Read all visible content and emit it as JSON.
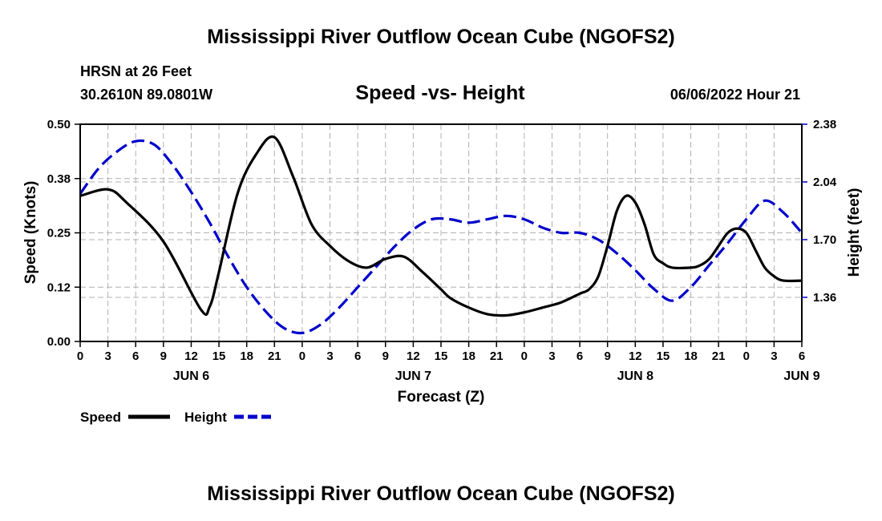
{
  "header": {
    "title": "Mississippi River Outflow Ocean Cube (NGOFS2)",
    "station": "HRSN at 26 Feet",
    "location": "30.2610N  89.0801W",
    "subtitle": "Speed -vs- Height",
    "datetime": "06/06/2022 Hour 21",
    "footer_title": "Mississippi River Outflow Ocean Cube (NGOFS2)"
  },
  "legend": {
    "speed_label": "Speed",
    "height_label": "Height"
  },
  "colors": {
    "speed": "#000000",
    "height": "#0000cc",
    "grid": "#b0b0b0"
  },
  "chart_data": {
    "type": "line",
    "title": "Speed -vs- Height",
    "xlabel": "Forecast (Z)",
    "ylabel": "Speed (Knots)",
    "y2label": "Height (feet)",
    "x_unit": "forecast hour from JUN 6 00Z",
    "xlim": [
      0,
      78
    ],
    "ylim": [
      0,
      0.5
    ],
    "y2lim": [
      1.1,
      2.38
    ],
    "x_tick_labels": [
      "0",
      "3",
      "6",
      "9",
      "12",
      "15",
      "18",
      "21",
      "0",
      "3",
      "6",
      "9",
      "12",
      "15",
      "18",
      "21",
      "0",
      "3",
      "6",
      "9",
      "12",
      "15",
      "18",
      "21",
      "0",
      "3",
      "6"
    ],
    "y_tick_labels": [
      "0.00",
      "0.12",
      "0.25",
      "0.38",
      "0.50"
    ],
    "y2_tick_labels": [
      "1.36",
      "1.70",
      "2.04",
      "2.38"
    ],
    "y2_tick_values": [
      1.36,
      1.7,
      2.04,
      2.38
    ],
    "day_labels": [
      {
        "label": "JUN 6",
        "x": 12
      },
      {
        "label": "JUN 7",
        "x": 36
      },
      {
        "label": "JUN 8",
        "x": 60
      },
      {
        "label": "JUN 9",
        "x": 78
      }
    ],
    "series": [
      {
        "name": "Speed",
        "axis": "left",
        "x": [
          0,
          3,
          5,
          9,
          13,
          14,
          15,
          17,
          19,
          21,
          23,
          25,
          27,
          29,
          31,
          33,
          35,
          37,
          39,
          40,
          42,
          44,
          46,
          48,
          50,
          52,
          54,
          55,
          56,
          57,
          58,
          59,
          60,
          61,
          62,
          63,
          64,
          66,
          67,
          68,
          69,
          70,
          71,
          72,
          73,
          74,
          75,
          76,
          78
        ],
        "values": [
          0.335,
          0.35,
          0.32,
          0.23,
          0.075,
          0.08,
          0.16,
          0.34,
          0.43,
          0.47,
          0.38,
          0.27,
          0.22,
          0.185,
          0.17,
          0.19,
          0.195,
          0.16,
          0.12,
          0.1,
          0.078,
          0.063,
          0.06,
          0.067,
          0.078,
          0.09,
          0.11,
          0.12,
          0.15,
          0.22,
          0.3,
          0.335,
          0.32,
          0.27,
          0.2,
          0.18,
          0.17,
          0.17,
          0.175,
          0.19,
          0.22,
          0.25,
          0.26,
          0.25,
          0.21,
          0.17,
          0.15,
          0.14,
          0.14
        ]
      },
      {
        "name": "Height",
        "axis": "right",
        "x": [
          0,
          2,
          4,
          6,
          8,
          10,
          12,
          14,
          16,
          18,
          20,
          22,
          24,
          26,
          28,
          30,
          32,
          34,
          36,
          38,
          40,
          42,
          44,
          46,
          48,
          50,
          52,
          54,
          56,
          58,
          60,
          62,
          64,
          66,
          68,
          70,
          72,
          74,
          76,
          78
        ],
        "values": [
          1.97,
          2.12,
          2.22,
          2.28,
          2.26,
          2.14,
          1.98,
          1.8,
          1.6,
          1.42,
          1.28,
          1.18,
          1.15,
          1.2,
          1.3,
          1.42,
          1.54,
          1.66,
          1.76,
          1.82,
          1.82,
          1.8,
          1.82,
          1.84,
          1.82,
          1.77,
          1.74,
          1.74,
          1.7,
          1.62,
          1.52,
          1.41,
          1.34,
          1.42,
          1.55,
          1.68,
          1.82,
          1.93,
          1.86,
          1.74
        ]
      }
    ]
  }
}
